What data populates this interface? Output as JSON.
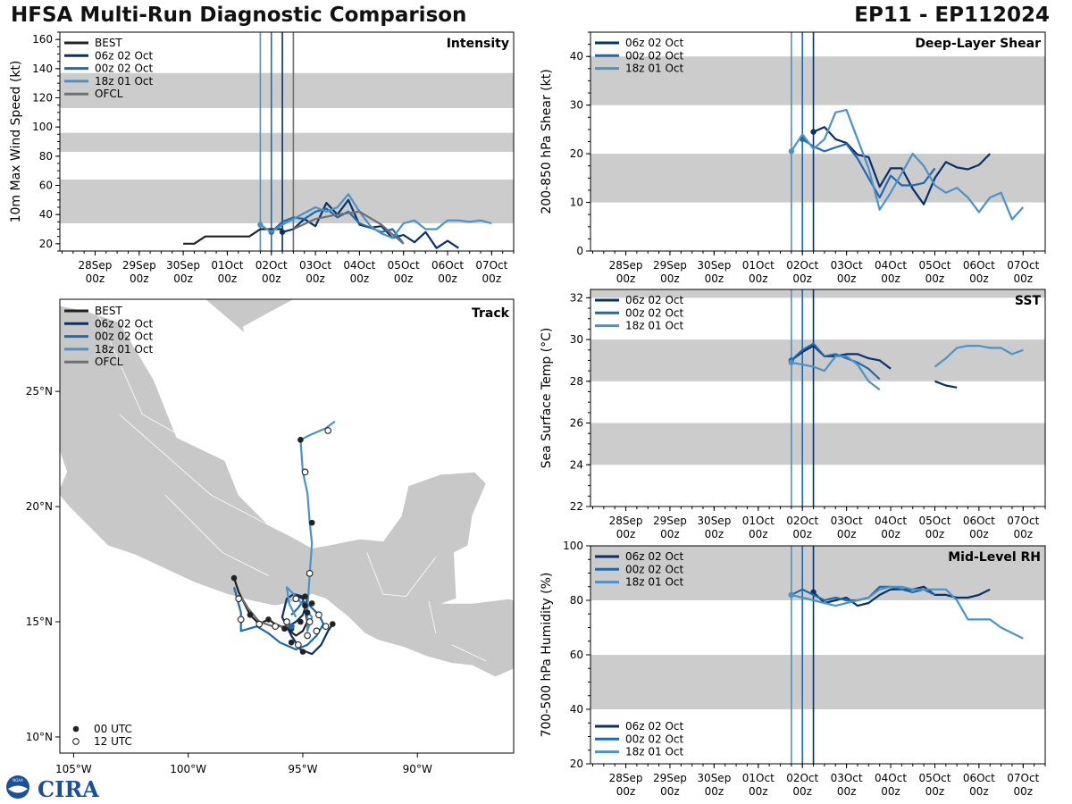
{
  "header": {
    "title": "HFSA Multi-Run Diagnostic Comparison",
    "storm_id": "EP11 - EP112024"
  },
  "logo": {
    "noaa_text": "NOAA",
    "cira_text": "CIRA"
  },
  "colors": {
    "BEST": "#222222",
    "06z 02 Oct": "#08306b",
    "00z 02 Oct": "#1f6aac",
    "18z 01 Oct": "#4a93c9",
    "OFCL": "#707070",
    "band": "#cccccc",
    "land": "#c8c8c8"
  },
  "time_axis": {
    "x_range": [
      -0.8,
      9.5
    ],
    "ticks": [
      {
        "v": 0,
        "l1": "28Sep",
        "l2": "00z"
      },
      {
        "v": 1,
        "l1": "29Sep",
        "l2": "00z"
      },
      {
        "v": 2,
        "l1": "30Sep",
        "l2": "00z"
      },
      {
        "v": 3,
        "l1": "01Oct",
        "l2": "00z"
      },
      {
        "v": 4,
        "l1": "02Oct",
        "l2": "00z"
      },
      {
        "v": 5,
        "l1": "03Oct",
        "l2": "00z"
      },
      {
        "v": 6,
        "l1": "04Oct",
        "l2": "00z"
      },
      {
        "v": 7,
        "l1": "05Oct",
        "l2": "00z"
      },
      {
        "v": 8,
        "l1": "06Oct",
        "l2": "00z"
      },
      {
        "v": 9,
        "l1": "07Oct",
        "l2": "00z"
      }
    ]
  },
  "chart_data": [
    {
      "id": "intensity",
      "type": "line",
      "title": "Intensity",
      "ylabel": "10m Max Wind Speed (kt)",
      "ylim": [
        15,
        165
      ],
      "yticks": [
        20,
        40,
        60,
        80,
        100,
        120,
        140,
        160
      ],
      "bands": [
        [
          34,
          64
        ],
        [
          83,
          96
        ],
        [
          113,
          137
        ]
      ],
      "init_lines": [
        {
          "name": "18z 01 Oct",
          "x": 3.75
        },
        {
          "name": "00z 02 Oct",
          "x": 4.0
        },
        {
          "name": "06z 02 Oct",
          "x": 4.25
        },
        {
          "name": "OFCL",
          "x": 4.5
        }
      ],
      "legend": [
        "BEST",
        "06z 02 Oct",
        "00z 02 Oct",
        "18z 01 Oct",
        "OFCL"
      ],
      "series": [
        {
          "name": "BEST",
          "x": [
            2.0,
            2.25,
            2.5,
            2.75,
            3.0,
            3.25,
            3.5,
            3.75,
            4.0,
            4.25
          ],
          "values": [
            20,
            20,
            25,
            25,
            25,
            25,
            25,
            30,
            30,
            30
          ]
        },
        {
          "name": "06z 02 Oct",
          "x": [
            4.25,
            4.5,
            4.75,
            5.0,
            5.25,
            5.5,
            5.75,
            6.0,
            6.25,
            6.5,
            6.75,
            7.0,
            7.25,
            7.5,
            7.75,
            8.0,
            8.25
          ],
          "values": [
            28,
            30,
            37,
            32,
            48,
            40,
            50,
            33,
            31,
            32,
            24,
            26,
            21,
            28,
            17,
            22,
            17
          ]
        },
        {
          "name": "00z 02 Oct",
          "x": [
            4.0,
            4.25,
            4.5,
            4.75,
            5.0,
            5.25,
            5.5,
            5.75,
            6.0,
            6.25,
            6.5,
            6.75,
            7.0
          ],
          "values": [
            28,
            35,
            38,
            37,
            42,
            44,
            38,
            42,
            34,
            31,
            28,
            30,
            20
          ]
        },
        {
          "name": "18z 01 Oct",
          "x": [
            3.75,
            4.0,
            4.25,
            4.5,
            4.75,
            5.0,
            5.25,
            5.5,
            5.75,
            6.0,
            6.25,
            6.5,
            6.75,
            7.0,
            7.25,
            7.5,
            7.75,
            8.0,
            8.25,
            8.5,
            8.75,
            9.0
          ],
          "values": [
            33,
            28,
            33,
            37,
            41,
            45,
            42,
            45,
            54,
            42,
            32,
            27,
            24,
            34,
            36,
            30,
            30,
            36,
            36,
            35,
            36,
            34
          ]
        },
        {
          "name": "OFCL",
          "x": [
            4.5,
            5.0,
            5.5,
            6.0,
            6.5,
            7.0
          ],
          "values": [
            30,
            37,
            40,
            42,
            33,
            20
          ]
        }
      ]
    },
    {
      "id": "shear",
      "type": "line",
      "title": "Deep-Layer Shear",
      "ylabel": "200-850 hPa Shear (kt)",
      "ylim": [
        0,
        45
      ],
      "yticks": [
        0,
        10,
        20,
        30,
        40
      ],
      "bands": [
        [
          10,
          20
        ],
        [
          30,
          40
        ]
      ],
      "init_lines": [
        {
          "name": "18z 01 Oct",
          "x": 3.75
        },
        {
          "name": "00z 02 Oct",
          "x": 4.0
        },
        {
          "name": "06z 02 Oct",
          "x": 4.25
        }
      ],
      "legend": [
        "06z 02 Oct",
        "00z 02 Oct",
        "18z 01 Oct"
      ],
      "series": [
        {
          "name": "06z 02 Oct",
          "x": [
            4.25,
            4.5,
            4.75,
            5.0,
            5.25,
            5.5,
            5.75,
            6.0,
            6.25,
            6.5,
            6.75,
            7.0,
            7.25,
            7.5,
            7.75,
            8.0,
            8.25
          ],
          "values": [
            24.5,
            25.5,
            23.0,
            22.2,
            19.8,
            19.3,
            13.2,
            17.0,
            17.0,
            12.8,
            9.6,
            15.0,
            18.3,
            17.2,
            16.8,
            17.7,
            20.0
          ]
        },
        {
          "name": "00z 02 Oct",
          "x": [
            4.0,
            4.25,
            4.5,
            4.75,
            5.0,
            5.25,
            5.5,
            5.75,
            6.0,
            6.25,
            6.5,
            6.75,
            7.0
          ],
          "values": [
            23.0,
            21.5,
            20.5,
            21.3,
            22.0,
            19.0,
            15.0,
            11.0,
            15.5,
            13.5,
            13.5,
            14.0,
            17.0
          ]
        },
        {
          "name": "18z 01 Oct",
          "x": [
            3.75,
            4.0,
            4.25,
            4.5,
            4.75,
            5.0,
            5.25,
            5.5,
            5.75,
            6.0,
            6.25,
            6.5,
            6.75,
            7.0,
            7.25,
            7.5,
            7.75,
            8.0,
            8.25,
            8.5,
            8.75,
            9.0
          ],
          "values": [
            20.5,
            24.0,
            21.0,
            23.0,
            28.5,
            29.0,
            23.0,
            17.0,
            8.5,
            12.0,
            16.0,
            20.0,
            17.5,
            13.5,
            12.0,
            13.0,
            11.0,
            8.0,
            11.0,
            12.0,
            6.5,
            9.0
          ]
        }
      ]
    },
    {
      "id": "sst",
      "type": "line",
      "title": "SST",
      "ylabel": "Sea Surface Temp (°C)",
      "ylim": [
        22,
        32.4
      ],
      "yticks": [
        22,
        24,
        26,
        28,
        30,
        32
      ],
      "bands": [
        [
          24,
          26
        ],
        [
          28,
          30
        ],
        [
          32,
          32.4
        ]
      ],
      "init_lines": [
        {
          "name": "18z 01 Oct",
          "x": 3.75
        },
        {
          "name": "00z 02 Oct",
          "x": 4.0
        },
        {
          "name": "06z 02 Oct",
          "x": 4.25
        }
      ],
      "legend": [
        "06z 02 Oct",
        "00z 02 Oct",
        "18z 01 Oct"
      ],
      "series": [
        {
          "name": "06z 02 Oct",
          "x": [
            3.75,
            4.0,
            4.25,
            4.5,
            4.75,
            5.0,
            5.25,
            5.5,
            5.75,
            6.0,
            null,
            7.0,
            7.25,
            7.5
          ],
          "values": [
            29.0,
            29.4,
            29.7,
            29.2,
            29.2,
            29.3,
            29.3,
            29.1,
            29.0,
            28.6,
            null,
            28.0,
            27.8,
            27.7
          ]
        },
        {
          "name": "00z 02 Oct",
          "x": [
            3.75,
            4.0,
            4.25,
            4.5,
            4.75,
            5.0,
            5.25,
            5.5,
            5.75
          ],
          "values": [
            29.0,
            29.5,
            29.8,
            29.2,
            29.3,
            29.1,
            28.9,
            28.6,
            28.1
          ]
        },
        {
          "name": "18z 01 Oct",
          "x": [
            3.75,
            4.0,
            4.25,
            4.5,
            4.75,
            5.0,
            5.25,
            5.5,
            5.75,
            null,
            7.0,
            7.25,
            7.5,
            7.75,
            8.0,
            8.25,
            8.5,
            8.75,
            9.0
          ],
          "values": [
            28.9,
            28.8,
            28.7,
            28.5,
            29.2,
            29.2,
            28.8,
            28.0,
            27.6,
            null,
            28.7,
            29.1,
            29.6,
            29.7,
            29.7,
            29.6,
            29.6,
            29.3,
            29.5
          ]
        }
      ]
    },
    {
      "id": "rh",
      "type": "line",
      "title": "Mid-Level RH",
      "ylabel": "700-500 hPa Humidity (%)",
      "ylim": [
        20,
        100
      ],
      "yticks": [
        20,
        40,
        60,
        80,
        100
      ],
      "bands": [
        [
          40,
          60
        ],
        [
          80,
          100
        ]
      ],
      "init_lines": [
        {
          "name": "18z 01 Oct",
          "x": 3.75
        },
        {
          "name": "00z 02 Oct",
          "x": 4.0
        },
        {
          "name": "06z 02 Oct",
          "x": 4.25
        }
      ],
      "legend": [
        "06z 02 Oct",
        "00z 02 Oct",
        "18z 01 Oct"
      ],
      "series": [
        {
          "name": "06z 02 Oct",
          "x": [
            4.25,
            4.5,
            4.75,
            5.0,
            5.25,
            5.5,
            5.75,
            6.0,
            6.25,
            6.5,
            6.75,
            7.0,
            7.25,
            7.5,
            7.75,
            8.0,
            8.25
          ],
          "values": [
            83,
            79,
            80,
            81,
            78,
            79,
            82,
            84,
            84,
            84,
            85,
            82,
            82,
            81,
            81,
            82,
            84
          ]
        },
        {
          "name": "00z 02 Oct",
          "x": [
            3.75,
            4.0,
            4.25,
            4.5,
            4.75,
            5.0,
            5.25,
            5.5,
            5.75,
            6.0,
            6.25,
            6.5,
            6.75,
            7.0
          ],
          "values": [
            82,
            84,
            82,
            80,
            81,
            80,
            80,
            81,
            85,
            85,
            84,
            83,
            84,
            82
          ]
        },
        {
          "name": "18z 01 Oct",
          "x": [
            3.75,
            4.0,
            4.25,
            4.5,
            4.75,
            5.0,
            5.25,
            5.5,
            5.75,
            6.0,
            6.25,
            6.5,
            6.75,
            7.0,
            7.25,
            7.5,
            7.75,
            8.0,
            8.25,
            8.5,
            8.75,
            9.0
          ],
          "values": [
            82,
            81,
            80,
            79,
            78,
            79,
            80,
            81,
            84,
            85,
            85,
            84,
            84,
            84,
            84,
            80,
            73,
            73,
            73,
            70,
            68,
            66
          ]
        }
      ]
    },
    {
      "id": "track",
      "type": "scatter",
      "title": "Track",
      "xlim": [
        -105.6,
        -85.8
      ],
      "ylim": [
        9.3,
        29.0
      ],
      "xticks": [
        {
          "v": -105,
          "l": "105°W"
        },
        {
          "v": -100,
          "l": "100°W"
        },
        {
          "v": -95,
          "l": "95°W"
        },
        {
          "v": -90,
          "l": "90°W"
        }
      ],
      "yticks": [
        {
          "v": 10,
          "l": "10°N"
        },
        {
          "v": 15,
          "l": "15°N"
        },
        {
          "v": 20,
          "l": "20°N"
        },
        {
          "v": 25,
          "l": "25°N"
        }
      ],
      "legend": [
        "BEST",
        "06z 02 Oct",
        "00z 02 Oct",
        "18z 01 Oct",
        "OFCL"
      ],
      "marker_legend": [
        "00 UTC",
        "12 UTC"
      ],
      "series": [
        {
          "name": "BEST",
          "lon": [
            -98.0,
            -97.8,
            -97.3,
            -96.9,
            -96.5,
            -96.2,
            -95.7,
            -95.3,
            -95.0,
            -94.8,
            -94.9,
            -95.0,
            -95.2
          ],
          "lat": [
            16.9,
            16.3,
            15.3,
            14.9,
            15.1,
            14.9,
            14.7,
            14.4,
            14.6,
            15.0,
            15.5,
            16.0,
            16.1
          ]
        },
        {
          "name": "06z 02 Oct",
          "lon": [
            -95.8,
            -95.3,
            -95.0,
            -94.9,
            -94.8,
            -95.0,
            -95.4,
            -95.7,
            -95.9,
            -95.5,
            -95.1,
            -94.6,
            -94.2,
            -93.9,
            -93.7
          ],
          "lat": [
            14.7,
            15.0,
            15.3,
            15.6,
            16.0,
            16.1,
            16.2,
            16.0,
            15.2,
            14.4,
            13.8,
            13.6,
            14.0,
            14.6,
            14.9
          ]
        },
        {
          "name": "00z 02 Oct",
          "lon": [
            -95.5,
            -95.2,
            -95.0,
            -94.7,
            -94.3,
            -94.1,
            -94.4,
            -94.8,
            -95.3,
            -96.0,
            -96.5,
            -97.0,
            -97.7,
            -97.7,
            -98.0
          ],
          "lat": [
            15.3,
            15.6,
            15.9,
            15.7,
            15.3,
            14.9,
            14.4,
            14.0,
            13.8,
            14.1,
            14.5,
            14.8,
            14.6,
            15.4,
            16.5
          ]
        },
        {
          "name": "18z 01 Oct",
          "lon": [
            -95.3,
            -95.6,
            -95.7,
            -95.3,
            -94.9,
            -94.6,
            -94.8,
            -94.8,
            -94.7,
            -94.6,
            -94.7,
            -94.8,
            -95.0,
            -95.1,
            -94.7,
            -94.0,
            -93.6
          ],
          "lat": [
            15.2,
            15.8,
            16.5,
            16.1,
            15.6,
            15.2,
            14.6,
            15.5,
            17.1,
            18.4,
            19.3,
            20.6,
            21.5,
            22.9,
            23.1,
            23.4,
            23.7
          ]
        },
        {
          "name": "OFCL",
          "lon": [
            -95.5,
            -96.3,
            -96.9,
            -97.4,
            -97.7
          ],
          "lat": [
            14.8,
            14.8,
            15.0,
            15.6,
            16.1
          ]
        }
      ],
      "markers_00utc": [
        [
          -98.0,
          16.9
        ],
        [
          -97.3,
          15.3
        ],
        [
          -96.5,
          15.1
        ],
        [
          -95.5,
          14.1
        ],
        [
          -95.1,
          15.0
        ],
        [
          -94.9,
          15.7
        ],
        [
          -94.8,
          15.4
        ],
        [
          -94.6,
          15.8
        ],
        [
          -94.9,
          16.1
        ],
        [
          -95.3,
          16.0
        ],
        [
          -95.0,
          13.7
        ],
        [
          -93.7,
          14.9
        ],
        [
          -94.6,
          19.3
        ],
        [
          -95.1,
          22.9
        ],
        [
          -95.8,
          14.7
        ],
        [
          -95.5,
          14.7
        ]
      ],
      "markers_12utc": [
        [
          -97.8,
          16.0
        ],
        [
          -97.7,
          15.1
        ],
        [
          -96.9,
          14.9
        ],
        [
          -96.2,
          14.8
        ],
        [
          -95.2,
          14.0
        ],
        [
          -94.8,
          14.4
        ],
        [
          -94.4,
          14.6
        ],
        [
          -94.3,
          15.3
        ],
        [
          -95.7,
          15.0
        ],
        [
          -94.7,
          15.0
        ],
        [
          -95.3,
          16.0
        ],
        [
          -94.0,
          14.8
        ],
        [
          -94.7,
          17.1
        ],
        [
          -94.9,
          21.5
        ],
        [
          -93.9,
          23.3
        ]
      ],
      "analysis_point": [
        -95.5,
        14.8
      ]
    }
  ]
}
